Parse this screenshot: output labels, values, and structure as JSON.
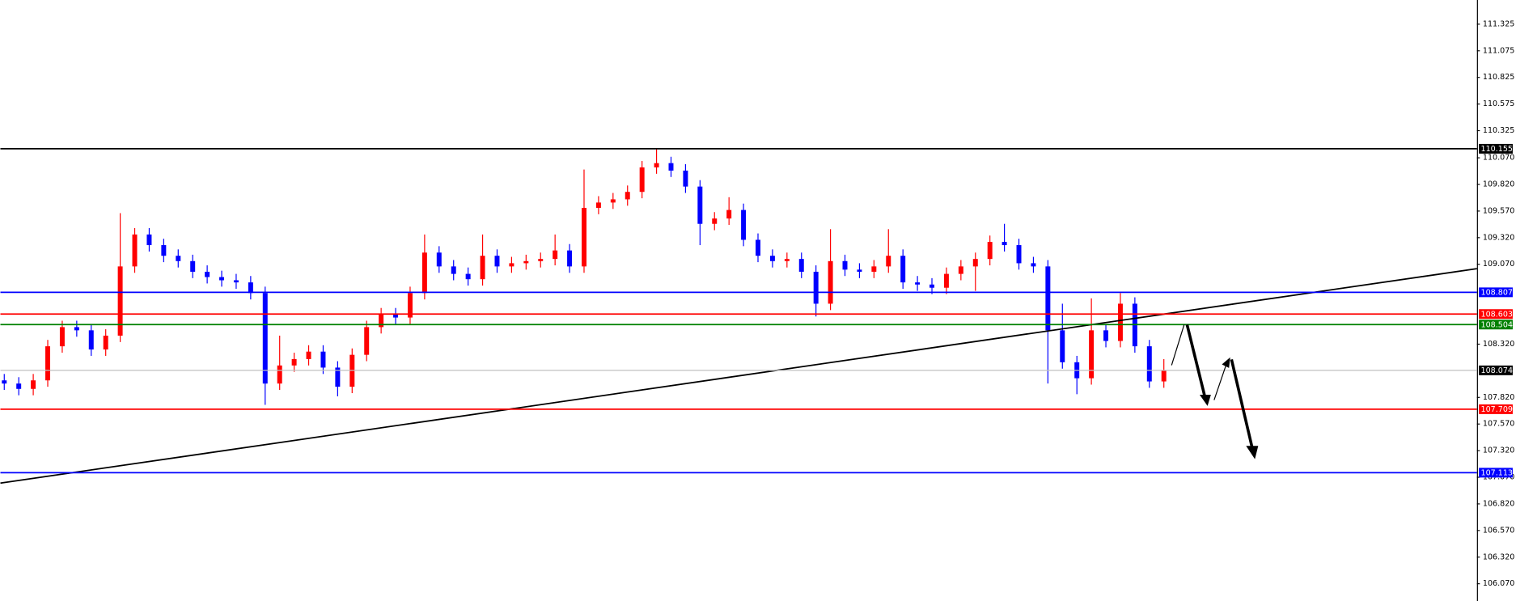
{
  "chart_data": {
    "type": "candlestick",
    "up_color": "#ff0000",
    "down_color": "#0000ff",
    "ylim": [
      105.908,
      111.552
    ],
    "yticks": [
      111.325,
      111.075,
      110.825,
      110.575,
      110.325,
      {
        "value": 110.07,
        "label": "110.070"
      },
      {
        "value": 109.82,
        "label": "109.820"
      },
      {
        "value": 109.57,
        "label": "109.570"
      },
      {
        "value": 109.32,
        "label": "109.320"
      },
      {
        "value": 109.07,
        "label": "109.070"
      },
      {
        "value": 108.32,
        "label": "108.320"
      },
      {
        "value": 107.82,
        "label": "107.820"
      },
      {
        "value": 107.57,
        "label": "107.570"
      },
      {
        "value": 107.32,
        "label": "107.320"
      },
      {
        "value": 107.07,
        "label": "107.070"
      },
      {
        "value": 106.82,
        "label": "106.820"
      },
      {
        "value": 106.57,
        "label": "106.570"
      },
      {
        "value": 106.32,
        "label": "106.320"
      },
      {
        "value": 106.07,
        "label": "106.070"
      }
    ],
    "open": [
      107.98,
      107.95,
      107.9,
      107.98,
      108.3,
      108.48,
      108.45,
      108.27,
      108.4,
      109.05,
      109.35,
      109.25,
      109.15,
      109.1,
      109.0,
      108.95,
      108.92,
      108.9,
      108.8,
      107.95,
      108.12,
      108.18,
      108.25,
      108.1,
      107.92,
      108.22,
      108.48,
      108.6,
      108.57,
      108.8,
      109.18,
      109.05,
      108.98,
      108.93,
      109.15,
      109.05,
      109.08,
      109.1,
      109.12,
      109.2,
      109.05,
      109.6,
      109.65,
      109.68,
      109.75,
      109.98,
      110.02,
      109.95,
      109.8,
      109.45,
      109.5,
      109.58,
      109.3,
      109.15,
      109.1,
      109.12,
      109.0,
      108.7,
      109.1,
      109.02,
      109.0,
      109.05,
      109.15,
      108.9,
      108.88,
      108.85,
      108.98,
      109.05,
      109.12,
      109.28,
      109.25,
      109.08,
      109.05,
      108.45,
      108.15,
      108.0,
      108.45,
      108.35,
      108.7,
      108.3,
      107.97
    ],
    "high": [
      108.04,
      108.01,
      108.04,
      108.36,
      108.54,
      108.54,
      108.51,
      108.46,
      109.55,
      109.41,
      109.41,
      109.31,
      109.21,
      109.16,
      109.06,
      109.01,
      108.98,
      108.96,
      108.86,
      108.4,
      108.24,
      108.31,
      108.31,
      108.16,
      108.28,
      108.54,
      108.66,
      108.66,
      108.86,
      109.35,
      109.24,
      109.11,
      109.04,
      109.35,
      109.21,
      109.14,
      109.16,
      109.18,
      109.35,
      109.26,
      109.96,
      109.71,
      109.74,
      109.81,
      110.04,
      110.15,
      110.08,
      110.01,
      109.86,
      109.56,
      109.7,
      109.64,
      109.36,
      109.21,
      109.18,
      109.18,
      109.06,
      109.4,
      109.16,
      109.08,
      109.11,
      109.4,
      109.21,
      108.96,
      108.94,
      109.04,
      109.11,
      109.18,
      109.34,
      109.45,
      109.31,
      109.14,
      109.11,
      108.7,
      108.21,
      108.75,
      108.51,
      108.8,
      108.76,
      108.36,
      108.18
    ],
    "low": [
      107.89,
      107.84,
      107.84,
      107.92,
      108.24,
      108.39,
      108.21,
      108.21,
      108.34,
      108.99,
      109.19,
      109.09,
      109.04,
      108.94,
      108.89,
      108.86,
      108.84,
      108.74,
      107.75,
      107.89,
      108.06,
      108.12,
      108.04,
      107.83,
      107.86,
      108.16,
      108.42,
      108.51,
      108.51,
      108.74,
      108.99,
      108.92,
      108.87,
      108.87,
      108.99,
      108.99,
      109.02,
      109.04,
      109.06,
      108.99,
      108.99,
      109.54,
      109.59,
      109.62,
      109.69,
      109.92,
      109.89,
      109.74,
      109.25,
      109.39,
      109.44,
      109.24,
      109.09,
      109.04,
      109.04,
      108.94,
      108.58,
      108.64,
      108.96,
      108.94,
      108.94,
      108.99,
      108.84,
      108.82,
      108.79,
      108.79,
      108.92,
      108.82,
      109.06,
      109.19,
      109.02,
      108.99,
      107.95,
      108.09,
      107.85,
      107.94,
      108.29,
      108.29,
      108.24,
      107.91,
      107.91
    ],
    "close": [
      107.95,
      107.9,
      107.98,
      108.3,
      108.48,
      108.45,
      108.27,
      108.4,
      109.05,
      109.35,
      109.25,
      109.15,
      109.1,
      109.0,
      108.95,
      108.92,
      108.9,
      108.8,
      107.95,
      108.12,
      108.18,
      108.25,
      108.1,
      107.92,
      108.22,
      108.48,
      108.6,
      108.57,
      108.8,
      109.18,
      109.05,
      108.98,
      108.93,
      109.15,
      109.05,
      109.08,
      109.1,
      109.12,
      109.2,
      109.05,
      109.6,
      109.65,
      109.68,
      109.75,
      109.98,
      110.02,
      109.95,
      109.8,
      109.45,
      109.5,
      109.58,
      109.3,
      109.15,
      109.1,
      109.12,
      109.0,
      108.7,
      109.1,
      109.02,
      109.0,
      109.05,
      109.15,
      108.9,
      108.88,
      108.85,
      108.98,
      109.05,
      109.12,
      109.28,
      109.25,
      109.08,
      109.05,
      108.45,
      108.15,
      108.0,
      108.45,
      108.35,
      108.7,
      108.3,
      107.97,
      108.07
    ],
    "levels": [
      {
        "value": 110.155,
        "color": "#000000"
      },
      {
        "value": 108.807,
        "color": "#0000ff"
      },
      {
        "value": 108.603,
        "color": "#ff0000"
      },
      {
        "value": 108.504,
        "color": "#008000"
      },
      {
        "value": 108.074,
        "color": "#c0c0c0"
      },
      {
        "value": 107.709,
        "color": "#ff0000"
      },
      {
        "value": 107.113,
        "color": "#0000ff"
      }
    ],
    "trendline": {
      "start": 107.015,
      "end": 109.029,
      "color": "#000000"
    }
  }
}
